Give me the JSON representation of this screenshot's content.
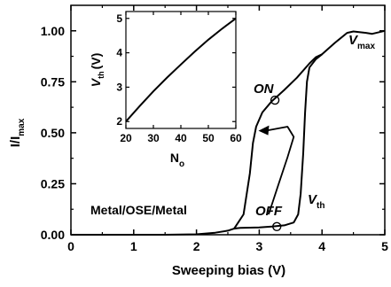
{
  "chart_data": [
    {
      "type": "line",
      "xlabel": "Sweeping bias (V)",
      "ylabel": "I/I",
      "ylabel_sub": "max",
      "xlim": [
        0,
        5
      ],
      "ylim": [
        0,
        1.125
      ],
      "x_ticks": [
        "0",
        "1",
        "2",
        "3",
        "4",
        "5"
      ],
      "y_ticks": [
        "0.00",
        "0.25",
        "0.50",
        "0.75",
        "1.00"
      ],
      "grid": false,
      "series": [
        {
          "x": [
            0,
            1.5,
            2.0,
            2.3,
            2.5,
            2.6,
            2.65,
            2.7,
            3.0,
            3.2,
            3.4,
            3.55,
            3.62,
            3.66,
            3.7,
            3.73,
            3.76,
            3.8,
            3.9,
            4.0,
            4.2,
            4.4,
            4.5,
            4.7,
            4.8,
            5.0
          ],
          "y": [
            0,
            0,
            0.002,
            0.01,
            0.02,
            0.03,
            0.032,
            0.034,
            0.036,
            0.04,
            0.046,
            0.06,
            0.1,
            0.2,
            0.4,
            0.6,
            0.75,
            0.82,
            0.86,
            0.885,
            0.94,
            0.99,
            0.997,
            0.99,
            0.985,
            1.0
          ]
        },
        {
          "x": [
            2.6,
            2.75,
            2.85,
            2.9,
            2.95,
            3.05,
            3.2,
            3.4,
            3.6,
            3.8,
            3.9,
            4.0
          ],
          "y": [
            0.03,
            0.1,
            0.3,
            0.45,
            0.53,
            0.6,
            0.655,
            0.71,
            0.77,
            0.84,
            0.87,
            0.885
          ]
        }
      ],
      "markers": [
        {
          "label": "ON",
          "x": 3.25,
          "y": 0.66
        },
        {
          "label": "OFF",
          "x": 3.28,
          "y": 0.04
        }
      ],
      "annotations": [
        {
          "text": "V",
          "sub": "max"
        },
        {
          "text": "V",
          "sub": "th"
        },
        {
          "text": "ON"
        },
        {
          "text": "OFF"
        },
        {
          "text": "Metal/OSE/Metal"
        }
      ],
      "arrow": {
        "x": [
          3.15,
          3.3,
          3.45,
          3.55,
          3.45,
          3.1
        ],
        "y": [
          0.1,
          0.24,
          0.38,
          0.48,
          0.53,
          0.51
        ]
      }
    },
    {
      "type": "line",
      "xlabel": "N",
      "xlabel_sub": "o",
      "ylabel": "V",
      "ylabel_sub": "th",
      "ylabel_unit": "(V)",
      "xlim": [
        20,
        60
      ],
      "ylim": [
        1.8,
        5.2
      ],
      "x_ticks": [
        "20",
        "30",
        "40",
        "50",
        "60"
      ],
      "y_ticks": [
        "2",
        "3",
        "4",
        "5"
      ],
      "series": [
        {
          "x": [
            20,
            25,
            30,
            35,
            40,
            45,
            50,
            55,
            60
          ],
          "y": [
            2.0,
            2.45,
            2.88,
            3.28,
            3.66,
            4.03,
            4.38,
            4.7,
            5.0
          ]
        }
      ]
    }
  ]
}
